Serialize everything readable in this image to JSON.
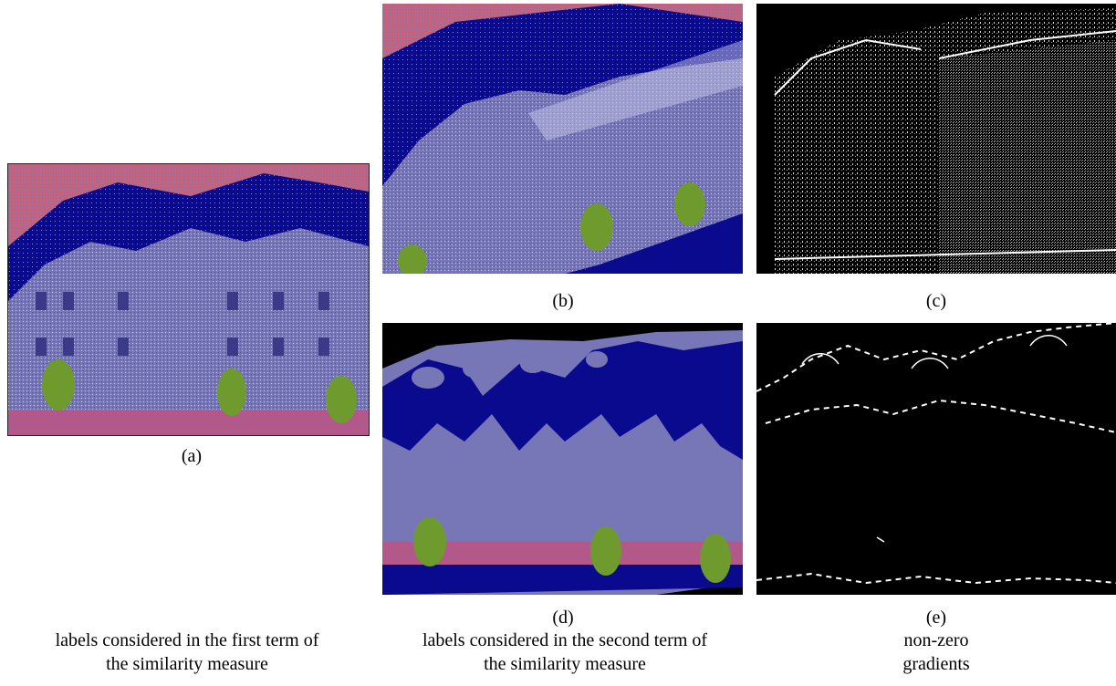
{
  "figure": {
    "panels": [
      {
        "id": "a",
        "label": "(a)",
        "description_icon": "building-label-map-noisy"
      },
      {
        "id": "b",
        "label": "(b)",
        "description_icon": "building-label-map-noisy-oblique"
      },
      {
        "id": "c",
        "label": "(c)",
        "description_icon": "gradient-edge-image"
      },
      {
        "id": "d",
        "label": "(d)",
        "description_icon": "building-segmentation-map"
      },
      {
        "id": "e",
        "label": "(e)",
        "description_icon": "nonzero-gradient-edges"
      }
    ],
    "captions": {
      "first_term": [
        "labels considered in the first term of",
        "the similarity measure"
      ],
      "second_term": [
        "labels considered in the second term of",
        "the similarity measure"
      ],
      "gradients": [
        "non-zero",
        "gradients"
      ]
    },
    "colors": {
      "sky": "#c2637f",
      "roof": "#0a0a8e",
      "facade": "#7777b7",
      "vegetation": "#6f9a2e",
      "ground": "#b3588a",
      "edge": "#ffffff",
      "background": "#000000"
    }
  }
}
